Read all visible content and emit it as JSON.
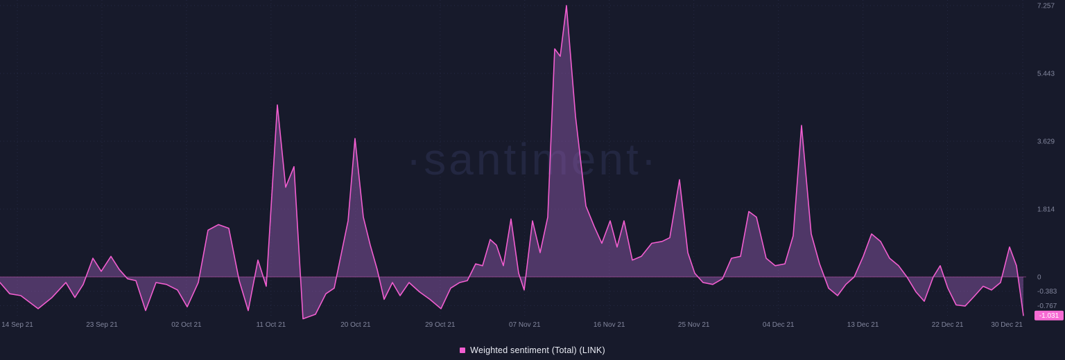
{
  "watermark": "·santiment·",
  "legend": {
    "label": "Weighted sentiment (Total) (LINK)"
  },
  "colors": {
    "background": "#171a2b",
    "grid": "#262a45",
    "watermark": "#232741",
    "axis_text": "#83879e",
    "line": "#f25ed0",
    "fill": "rgba(158,96,186,0.42)",
    "zero_line": "rgba(220,90,190,0.5)",
    "badge_bg": "#f76bd4",
    "badge_text": "#ffffff",
    "legend_text": "#eceef6"
  },
  "chart_data": {
    "type": "area",
    "title": "Weighted sentiment (Total) (LINK)",
    "series_name": "Weighted sentiment (Total) (LINK)",
    "x_axis": "dates from 14 Sep 21 to 30 Dec 21 (daily)",
    "x_coordinate_unit": "plot_px",
    "baseline": 0,
    "ylim": [
      -1.12,
      7.257
    ],
    "grid": "dotted",
    "legend_position": "bottom-center",
    "x_ticks": [
      [
        "14 Sep 21",
        0
      ],
      [
        "23 Sep 21",
        9
      ],
      [
        "02 Oct 21",
        18
      ],
      [
        "11 Oct 21",
        27
      ],
      [
        "20 Oct 21",
        36
      ],
      [
        "29 Oct 21",
        45
      ],
      [
        "07 Nov 21",
        54
      ],
      [
        "16 Nov 21",
        63
      ],
      [
        "25 Nov 21",
        72
      ],
      [
        "04 Dec 21",
        81
      ],
      [
        "13 Dec 21",
        90
      ],
      [
        "22 Dec 21",
        99
      ],
      [
        "30 Dec 21",
        107
      ]
    ],
    "y_ticks": [
      [
        "7.257",
        7.257
      ],
      [
        "5.443",
        5.443
      ],
      [
        "3.629",
        3.629
      ],
      [
        "1.814",
        1.814
      ],
      [
        "0",
        0
      ],
      [
        "-0.383",
        -0.383
      ],
      [
        "-0.767",
        -0.767
      ]
    ],
    "current_value": -1.031,
    "current_value_label": "-1.031",
    "points": [
      [
        0,
        -0.15
      ],
      [
        14,
        -0.45
      ],
      [
        30,
        -0.5
      ],
      [
        55,
        -0.85
      ],
      [
        75,
        -0.55
      ],
      [
        95,
        -0.15
      ],
      [
        108,
        -0.55
      ],
      [
        120,
        -0.2
      ],
      [
        134,
        0.5
      ],
      [
        146,
        0.15
      ],
      [
        160,
        0.55
      ],
      [
        172,
        0.2
      ],
      [
        184,
        -0.05
      ],
      [
        196,
        -0.1
      ],
      [
        210,
        -0.9
      ],
      [
        225,
        -0.15
      ],
      [
        240,
        -0.2
      ],
      [
        256,
        -0.35
      ],
      [
        270,
        -0.8
      ],
      [
        286,
        -0.15
      ],
      [
        300,
        1.25
      ],
      [
        315,
        1.4
      ],
      [
        330,
        1.3
      ],
      [
        345,
        -0.1
      ],
      [
        358,
        -0.9
      ],
      [
        372,
        0.45
      ],
      [
        384,
        -0.25
      ],
      [
        400,
        4.6
      ],
      [
        412,
        2.4
      ],
      [
        424,
        2.95
      ],
      [
        437,
        -1.12
      ],
      [
        455,
        -1.0
      ],
      [
        470,
        -0.45
      ],
      [
        482,
        -0.3
      ],
      [
        492,
        0.6
      ],
      [
        502,
        1.5
      ],
      [
        512,
        3.7
      ],
      [
        524,
        1.6
      ],
      [
        534,
        0.85
      ],
      [
        544,
        0.2
      ],
      [
        554,
        -0.6
      ],
      [
        566,
        -0.15
      ],
      [
        577,
        -0.5
      ],
      [
        590,
        -0.15
      ],
      [
        605,
        -0.4
      ],
      [
        620,
        -0.6
      ],
      [
        636,
        -0.85
      ],
      [
        650,
        -0.3
      ],
      [
        663,
        -0.15
      ],
      [
        674,
        -0.1
      ],
      [
        686,
        0.35
      ],
      [
        696,
        0.3
      ],
      [
        707,
        1.0
      ],
      [
        716,
        0.85
      ],
      [
        726,
        0.3
      ],
      [
        737,
        1.55
      ],
      [
        748,
        0.1
      ],
      [
        756,
        -0.35
      ],
      [
        768,
        1.5
      ],
      [
        779,
        0.65
      ],
      [
        790,
        1.6
      ],
      [
        800,
        6.1
      ],
      [
        808,
        5.9
      ],
      [
        817,
        7.257
      ],
      [
        830,
        4.3
      ],
      [
        845,
        1.9
      ],
      [
        857,
        1.35
      ],
      [
        868,
        0.9
      ],
      [
        880,
        1.5
      ],
      [
        890,
        0.8
      ],
      [
        900,
        1.5
      ],
      [
        912,
        0.45
      ],
      [
        925,
        0.55
      ],
      [
        940,
        0.9
      ],
      [
        955,
        0.95
      ],
      [
        966,
        1.05
      ],
      [
        980,
        2.6
      ],
      [
        992,
        0.65
      ],
      [
        1002,
        0.1
      ],
      [
        1014,
        -0.15
      ],
      [
        1028,
        -0.2
      ],
      [
        1042,
        -0.05
      ],
      [
        1055,
        0.5
      ],
      [
        1068,
        0.55
      ],
      [
        1080,
        1.75
      ],
      [
        1091,
        1.6
      ],
      [
        1105,
        0.5
      ],
      [
        1118,
        0.3
      ],
      [
        1132,
        0.35
      ],
      [
        1144,
        1.1
      ],
      [
        1156,
        4.05
      ],
      [
        1170,
        1.15
      ],
      [
        1182,
        0.35
      ],
      [
        1195,
        -0.3
      ],
      [
        1208,
        -0.5
      ],
      [
        1220,
        -0.2
      ],
      [
        1232,
        0.0
      ],
      [
        1245,
        0.55
      ],
      [
        1257,
        1.15
      ],
      [
        1270,
        0.95
      ],
      [
        1283,
        0.5
      ],
      [
        1296,
        0.3
      ],
      [
        1308,
        0.0
      ],
      [
        1321,
        -0.4
      ],
      [
        1333,
        -0.65
      ],
      [
        1346,
        0.0
      ],
      [
        1356,
        0.3
      ],
      [
        1367,
        -0.3
      ],
      [
        1379,
        -0.75
      ],
      [
        1392,
        -0.78
      ],
      [
        1406,
        -0.5
      ],
      [
        1418,
        -0.25
      ],
      [
        1430,
        -0.35
      ],
      [
        1443,
        -0.15
      ],
      [
        1456,
        0.8
      ],
      [
        1466,
        0.3
      ],
      [
        1476,
        -1.031
      ]
    ]
  }
}
